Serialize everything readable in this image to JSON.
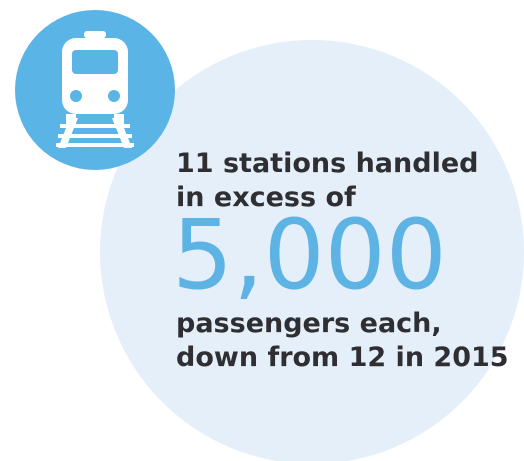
{
  "statement": {
    "intro": [
      "11 stations handled",
      "in excess of"
    ],
    "figure": "5,000",
    "outro": [
      "passengers each,",
      "down from 12 in 2015"
    ]
  }
}
